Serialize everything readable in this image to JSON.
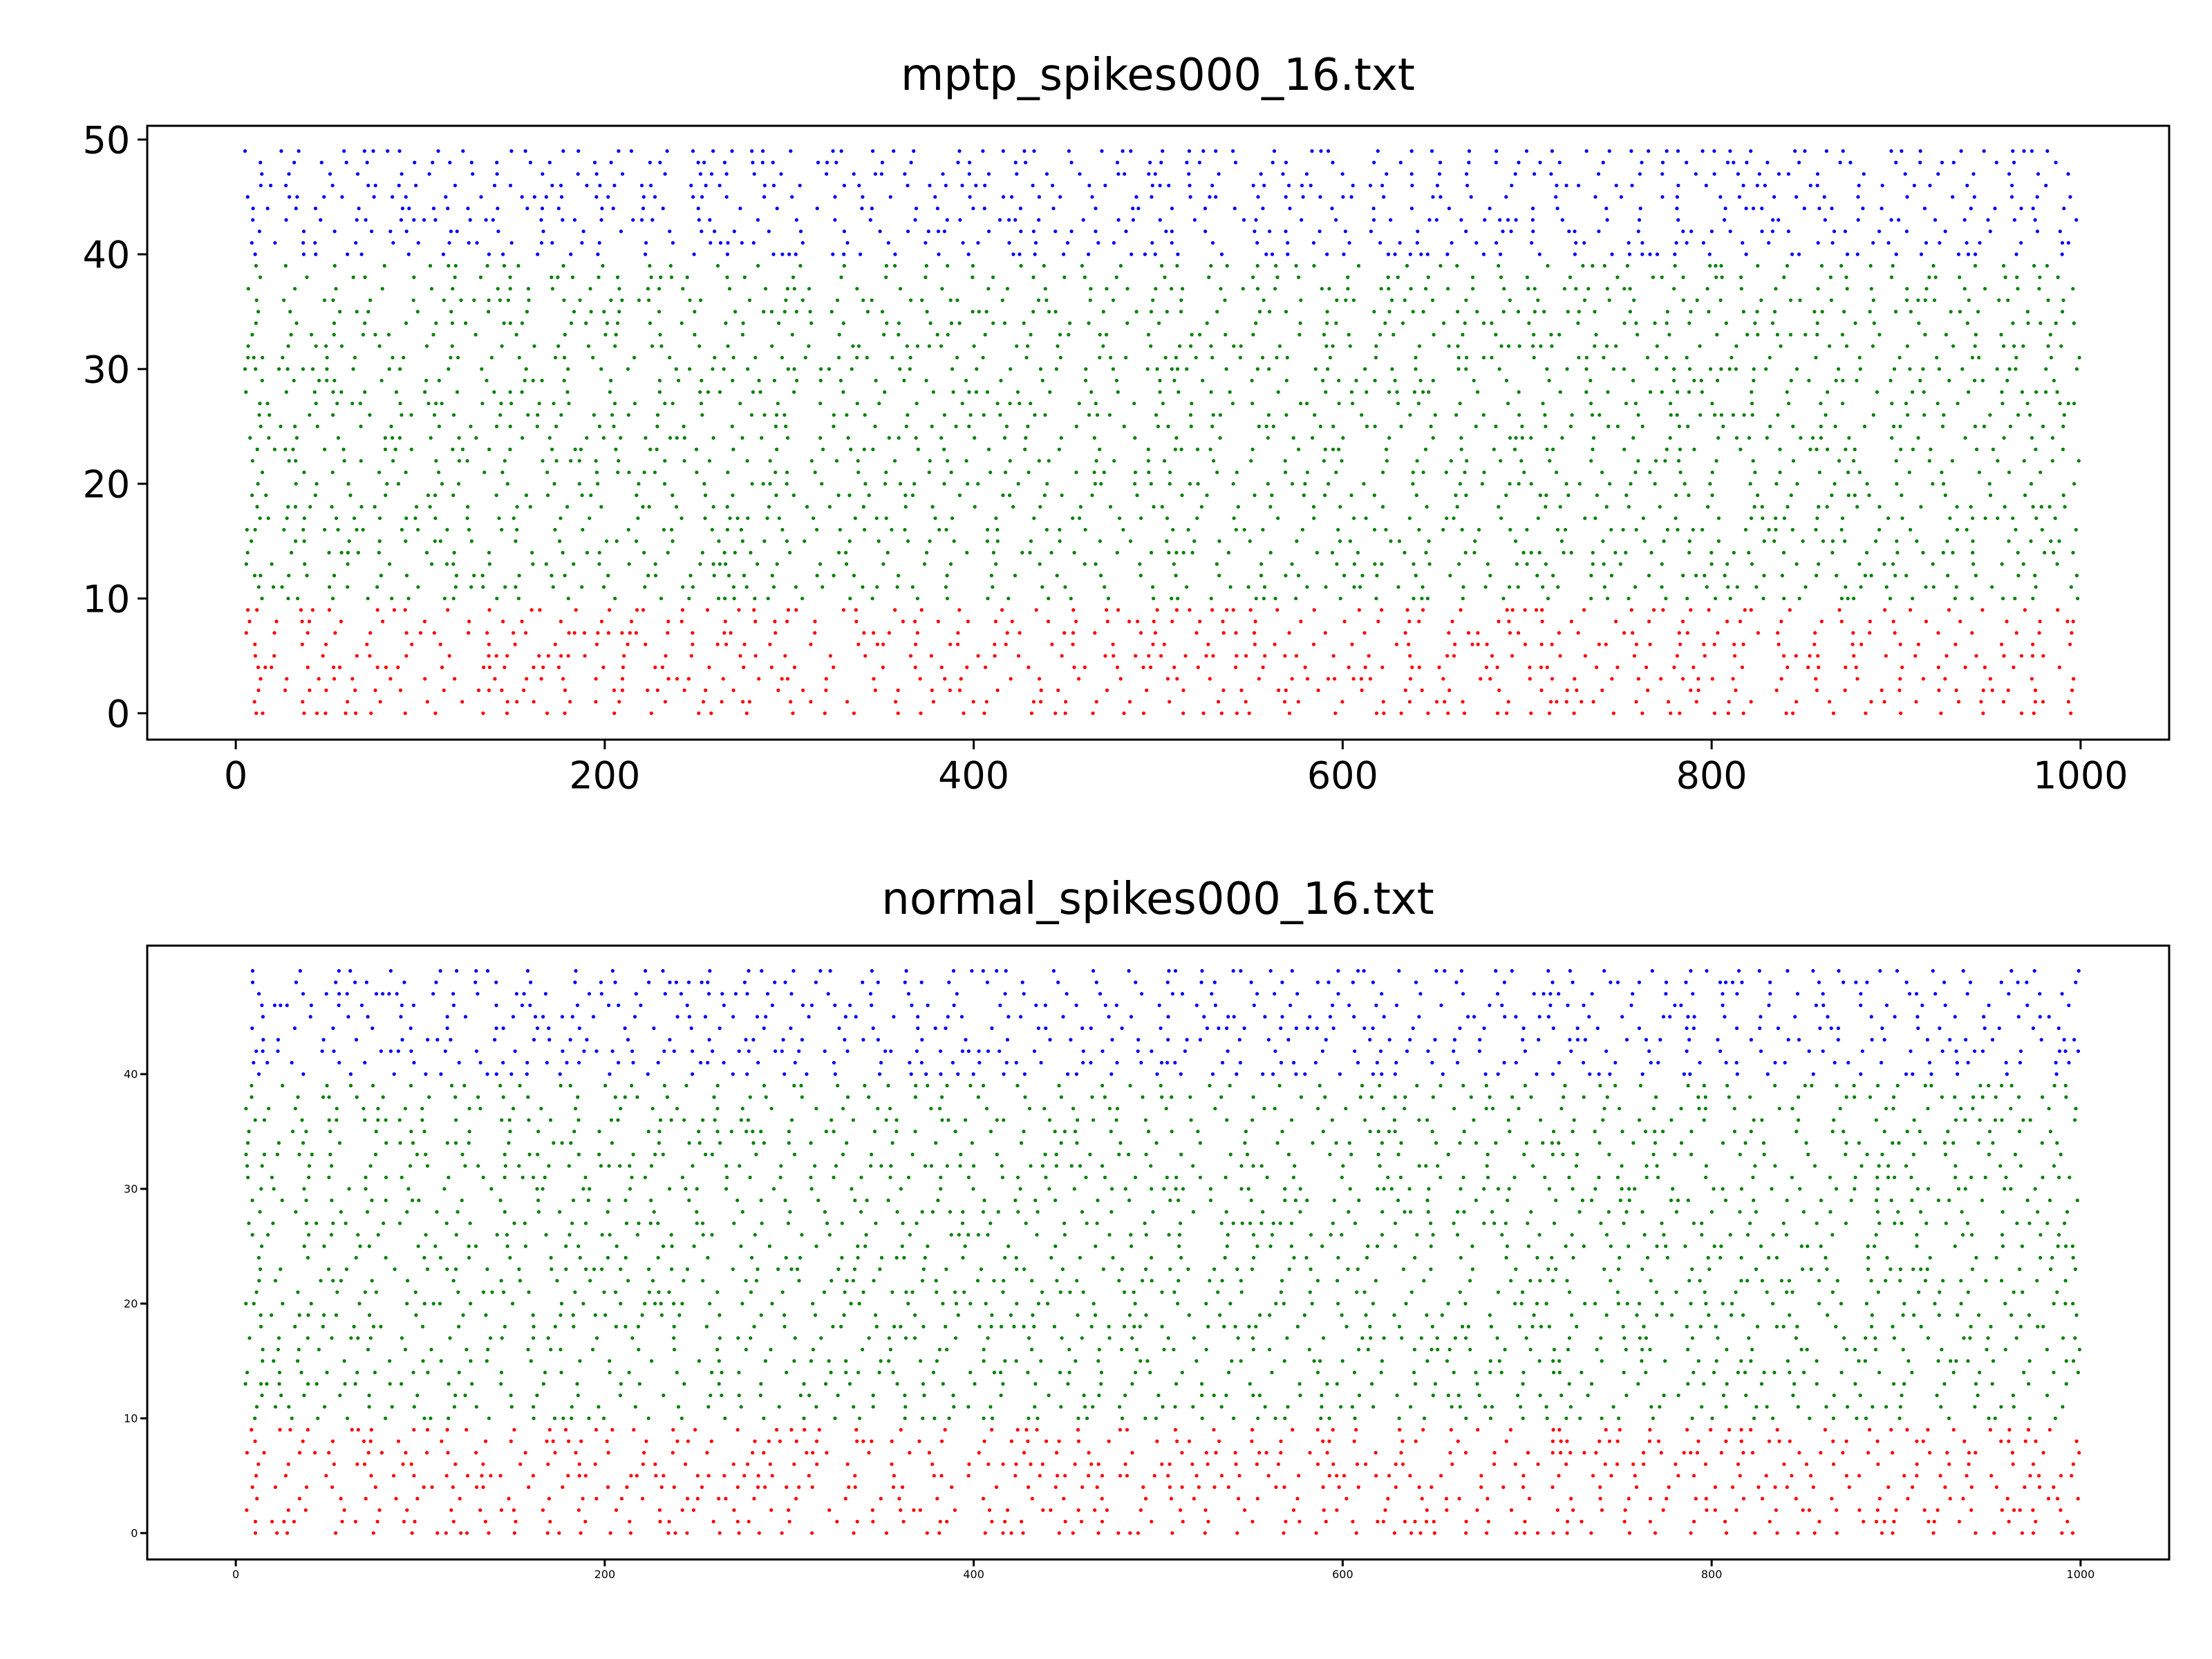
{
  "chart_data": [
    {
      "type": "scatter",
      "title": "mptp_spikes000_16.txt",
      "xlabel": "",
      "ylabel": "",
      "xlim": [
        -48,
        1048
      ],
      "ylim": [
        -2.3,
        51.2
      ],
      "xticks": [
        0,
        200,
        400,
        600,
        800,
        1000
      ],
      "yticks": [
        0,
        10,
        20,
        30,
        40,
        50
      ],
      "grid": false,
      "legend": "none",
      "groups": [
        {
          "neurons": [
            0,
            9
          ],
          "color": "#ff0000"
        },
        {
          "neurons": [
            10,
            39
          ],
          "color": "#008000"
        },
        {
          "neurons": [
            40,
            49
          ],
          "color": "#0000ff"
        }
      ],
      "time_range": [
        5,
        1000
      ],
      "seed": 16001
    },
    {
      "type": "scatter",
      "title": "normal_spikes000_16.txt",
      "xlabel": "",
      "ylabel": "",
      "xlim": [
        -48,
        1048
      ],
      "ylim": [
        -2.3,
        51.2
      ],
      "xticks": [
        0,
        200,
        400,
        600,
        800,
        1000
      ],
      "yticks": [
        0,
        10,
        20,
        30,
        40
      ],
      "grid": false,
      "legend": "none",
      "groups": [
        {
          "neurons": [
            0,
            9
          ],
          "color": "#ff0000"
        },
        {
          "neurons": [
            10,
            39
          ],
          "color": "#008000"
        },
        {
          "neurons": [
            40,
            49
          ],
          "color": "#0000ff"
        }
      ],
      "time_range": [
        5,
        1000
      ],
      "seed": 16002
    }
  ]
}
